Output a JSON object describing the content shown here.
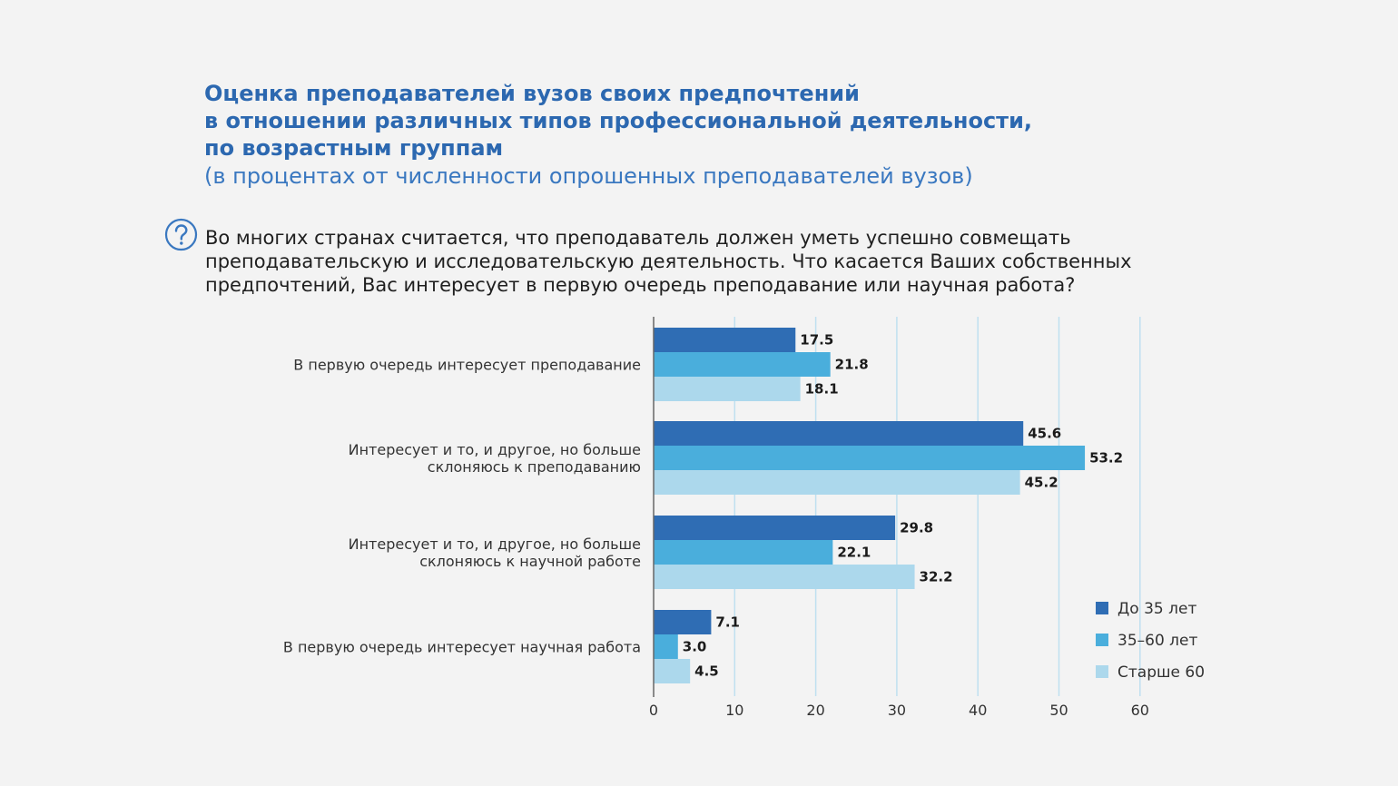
{
  "header": {
    "title_lines": [
      "Оценка преподавателей вузов своих предпочтений",
      "в отношении различных типов профессиональной деятельности,",
      "по возрастным группам"
    ],
    "subtitle": "(в процентах от численности опрошенных преподавателей вузов)"
  },
  "question": {
    "icon": "question-circle-icon",
    "lines": [
      "Во многих странах считается, что преподаватель должен уметь успешно совмещать",
      "преподавательскую и исследовательскую деятельность. Что касается Ваших собственных",
      "предпочтений, Вас интересует в первую очередь преподавание или научная работа?"
    ]
  },
  "chart_data": {
    "type": "bar",
    "orientation": "horizontal",
    "categories": [
      [
        "В первую очередь интересует преподавание"
      ],
      [
        "Интересует и то, и другое, но больше",
        "склоняюсь к преподаванию"
      ],
      [
        "Интересует и то, и другое, но больше",
        "склоняюсь к научной работе"
      ],
      [
        "В первую очередь интересует научная работа"
      ]
    ],
    "series": [
      {
        "name": "До 35 лет",
        "color": "#2f6db4",
        "values": [
          17.5,
          45.6,
          29.8,
          7.1
        ]
      },
      {
        "name": "35–60 лет",
        "color": "#4aaedc",
        "values": [
          21.8,
          53.2,
          22.1,
          3.0
        ]
      },
      {
        "name": "Старше 60",
        "color": "#acd8ec",
        "values": [
          18.1,
          45.2,
          32.2,
          4.5
        ]
      }
    ],
    "xlim": [
      0,
      60
    ],
    "xticks": [
      0,
      10,
      20,
      30,
      40,
      50,
      60
    ],
    "grid": true,
    "legend_position": "bottom-right",
    "data_labels": true
  }
}
